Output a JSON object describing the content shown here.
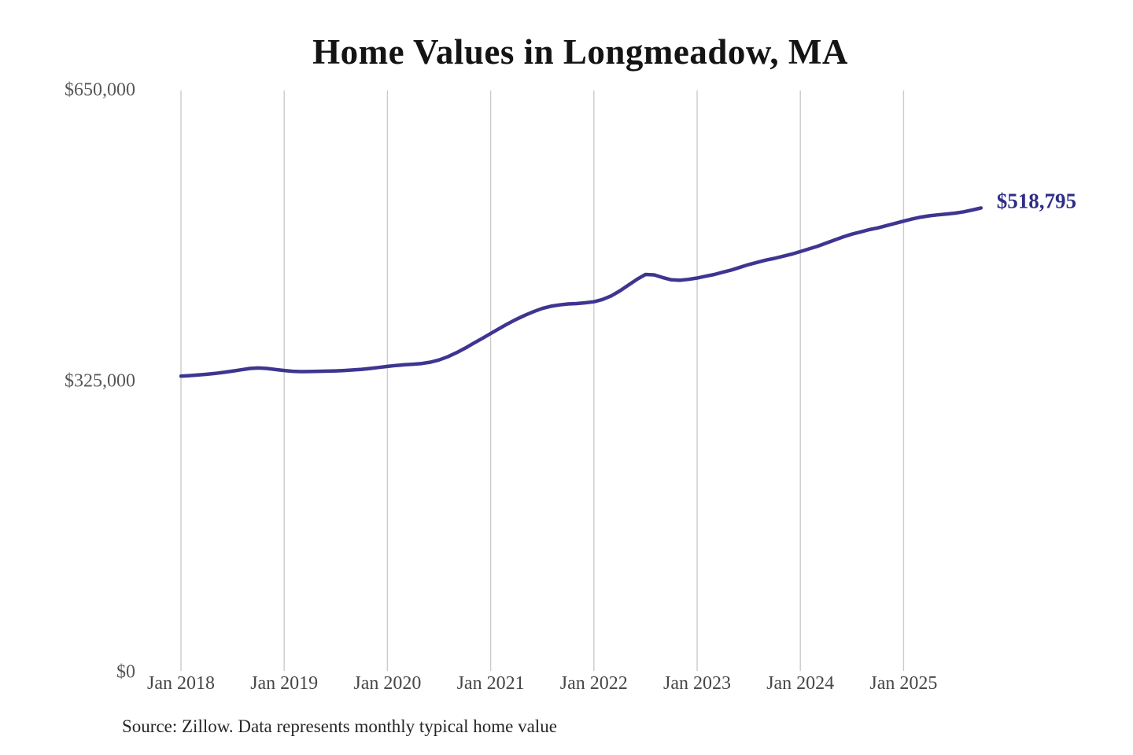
{
  "page": {
    "background": "#ffffff"
  },
  "chart_data": {
    "type": "line",
    "title": "Home Values in Longmeadow, MA",
    "source_note": "Source: Zillow. Data represents monthly typical home value",
    "frequency": "monthly",
    "x_start": "Jan 2018",
    "x_end": "Oct 2025",
    "grid": "vertical-only",
    "legend": "none",
    "y_max": 650000,
    "y_ticks": [
      {
        "label": "$0",
        "value": 0
      },
      {
        "label": "$325,000",
        "value": 325000
      },
      {
        "label": "$650,000",
        "value": 650000
      }
    ],
    "x_ticks": [
      {
        "label": "Jan 2018",
        "month_index": 0
      },
      {
        "label": "Jan 2019",
        "month_index": 12
      },
      {
        "label": "Jan 2020",
        "month_index": 24
      },
      {
        "label": "Jan 2021",
        "month_index": 36
      },
      {
        "label": "Jan 2022",
        "month_index": 48
      },
      {
        "label": "Jan 2023",
        "month_index": 60
      },
      {
        "label": "Jan 2024",
        "month_index": 72
      },
      {
        "label": "Jan 2025",
        "month_index": 84
      }
    ],
    "series": [
      {
        "name": "Typical home value",
        "color": "#3e3591",
        "end_label": "$518,795",
        "end_value": 518795,
        "values": [
          331000,
          331500,
          332200,
          333000,
          334000,
          335200,
          336500,
          338000,
          339500,
          340000,
          339500,
          338300,
          337200,
          336300,
          336000,
          336100,
          336300,
          336500,
          336800,
          337200,
          337800,
          338500,
          339500,
          340600,
          341800,
          342800,
          343600,
          344200,
          345000,
          346500,
          349000,
          352500,
          357000,
          362000,
          367500,
          373000,
          378500,
          384000,
          389500,
          394500,
          399000,
          403000,
          406500,
          409000,
          410500,
          411500,
          412000,
          412800,
          414000,
          416500,
          420500,
          426000,
          432500,
          439000,
          444500,
          444000,
          441000,
          438500,
          438000,
          439000,
          440500,
          442500,
          444500,
          447000,
          449500,
          452500,
          455500,
          458000,
          460500,
          462500,
          464800,
          467200,
          470000,
          473000,
          476000,
          479500,
          483000,
          486500,
          489500,
          492000,
          494500,
          496500,
          499000,
          501500,
          504000,
          506500,
          508500,
          510000,
          511000,
          512000,
          513000,
          514500,
          516500,
          518795
        ]
      }
    ],
    "colors": {
      "grid": "#cbcbcb",
      "line": "#3e3591",
      "title_text": "#141414",
      "x_axis_text": "#474747",
      "y_axis_text": "#585858",
      "end_label_text": "#2e2d87",
      "source_text": "#262626"
    }
  }
}
